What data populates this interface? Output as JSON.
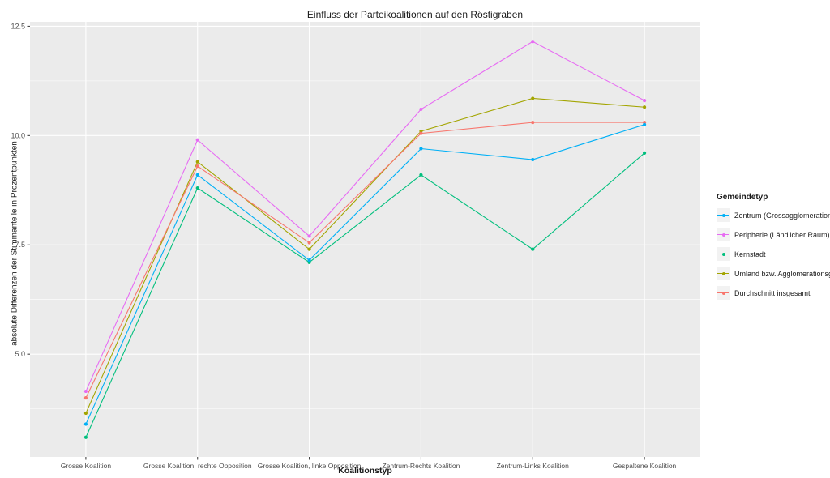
{
  "chart_data": {
    "type": "line",
    "title": "Einfluss der Parteikoalitionen auf den Röstigraben",
    "xlabel": "Koalitionstyp",
    "ylabel": "absolute Differenzen der Stimmanteile in Prozentpunkten",
    "categories": [
      "Grosse Koalition",
      "Grosse Koalition, rechte Opposition",
      "Grosse Koalition, linke Opposition",
      "Zentrum-Rechts Koalition",
      "Zentrum-Links Koalition",
      "Gespaltene Koalition"
    ],
    "series": [
      {
        "name": "Zentrum (Grossagglomeration)",
        "color": "#00B0F6",
        "values": [
          3.4,
          9.1,
          7.15,
          9.7,
          9.45,
          10.25
        ]
      },
      {
        "name": "Peripherie (Ländlicher Raum)",
        "color": "#E76BF3",
        "values": [
          4.15,
          9.9,
          7.7,
          10.6,
          12.15,
          10.8
        ]
      },
      {
        "name": "Kernstadt",
        "color": "#00BF7D",
        "values": [
          3.1,
          8.8,
          7.1,
          9.1,
          7.4,
          9.6
        ]
      },
      {
        "name": "Umland bzw. Agglomerationsgürtel",
        "color": "#A3A500",
        "values": [
          3.65,
          9.4,
          7.4,
          10.1,
          10.85,
          10.65
        ]
      },
      {
        "name": "Durchschnitt insgesamt",
        "color": "#F8766D",
        "values": [
          4.0,
          9.3,
          7.55,
          10.05,
          10.3,
          10.3
        ]
      }
    ],
    "yticks": [
      5.0,
      7.5,
      10.0,
      12.5
    ],
    "ytick_labels": [
      "5.0",
      "7.5",
      "10.0",
      "12.5"
    ],
    "minor_yticks": [
      3.75,
      6.25,
      8.75,
      11.25
    ],
    "ylim": [
      2.65,
      12.6
    ],
    "grid": true,
    "legend_title": "Gemeindetyp",
    "legend_position": "right",
    "panel_bg": "#EBEBEB",
    "grid_color": "#FFFFFF",
    "tick_color": "#333333",
    "tick_label_color": "#4D4D4D"
  }
}
